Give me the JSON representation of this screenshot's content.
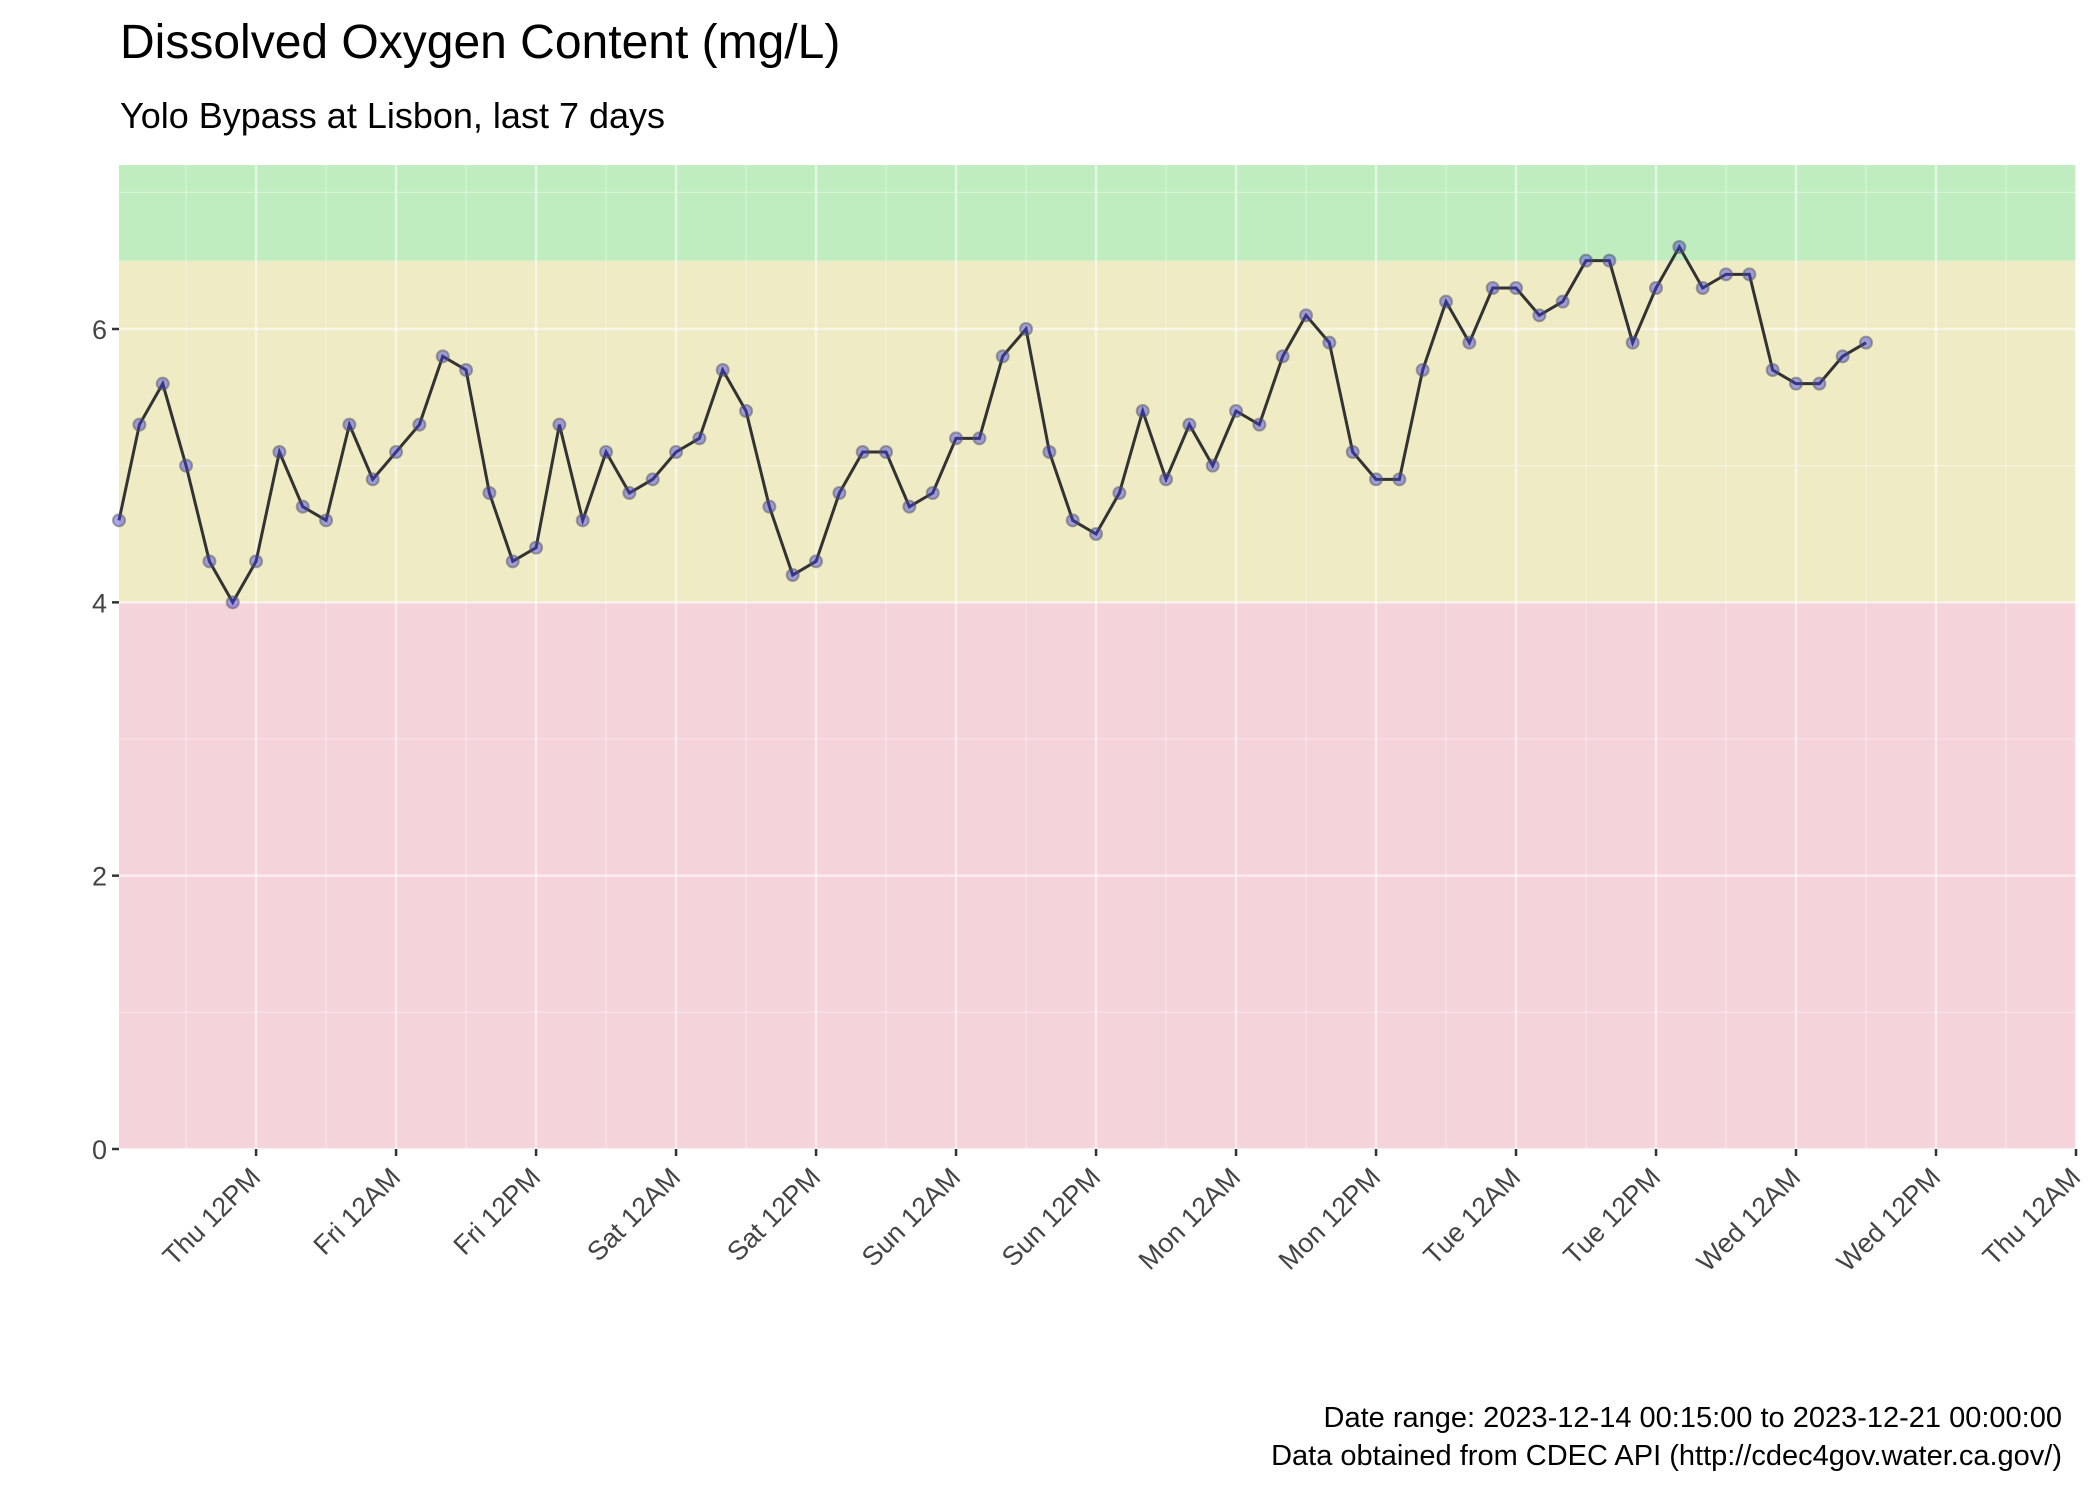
{
  "chart_data": {
    "type": "line",
    "title": "Dissolved Oxygen Content (mg/L)",
    "subtitle": "Yolo Bypass at Lisbon, last 7 days",
    "caption": [
      "Date range: 2023-12-14 00:15:00 to 2023-12-21 00:00:00",
      "Data obtained from CDEC API (http://cdec4gov.water.ca.gov/)"
    ],
    "x": [
      0.25,
      2,
      4,
      6,
      8,
      10,
      12,
      14,
      16,
      18,
      20,
      22,
      24,
      26,
      28,
      30,
      32,
      34,
      36,
      38,
      40,
      42,
      44,
      46,
      48,
      50,
      52,
      54,
      56,
      58,
      60,
      62,
      64,
      66,
      68,
      70,
      72,
      74,
      76,
      78,
      80,
      82,
      84,
      86,
      88,
      90,
      92,
      94,
      96,
      98,
      100,
      102,
      104,
      106,
      108,
      110,
      112,
      114,
      116,
      118,
      120,
      122,
      124,
      126,
      128,
      130,
      132,
      134,
      136,
      138,
      140,
      142,
      144,
      146,
      148,
      150
    ],
    "values": [
      4.6,
      5.3,
      5.6,
      5.0,
      4.3,
      4.0,
      4.3,
      5.1,
      4.7,
      4.6,
      5.3,
      4.9,
      5.1,
      5.3,
      5.8,
      5.7,
      4.8,
      4.3,
      4.4,
      5.3,
      4.6,
      5.1,
      4.8,
      4.9,
      5.1,
      5.2,
      5.7,
      5.4,
      4.7,
      4.2,
      4.3,
      4.8,
      5.1,
      5.1,
      4.7,
      4.8,
      5.2,
      5.2,
      5.8,
      6.0,
      5.1,
      4.6,
      4.5,
      4.8,
      5.4,
      4.9,
      5.3,
      5.0,
      5.4,
      5.3,
      5.8,
      6.1,
      5.9,
      5.1,
      4.9,
      4.9,
      5.7,
      6.2,
      5.9,
      6.3,
      6.3,
      6.1,
      6.2,
      6.5,
      6.5,
      5.9,
      6.3,
      6.6,
      6.3,
      6.4,
      6.4,
      5.7,
      5.6,
      5.6,
      5.8,
      5.9
    ],
    "color": "#333333",
    "point_color": "#3a3ae0",
    "bands": [
      {
        "from": 0,
        "to": 4,
        "color": "#f5d3db"
      },
      {
        "from": 4,
        "to": 6.5,
        "color": "#eeebc5"
      },
      {
        "from": 6.5,
        "to": 7.2,
        "color": "#bfedbf"
      }
    ],
    "xlim": [
      0.25,
      168
    ],
    "ylim": [
      0,
      7.2
    ],
    "yticks": [
      0,
      2,
      4,
      6
    ],
    "xticks": [
      {
        "value": 12,
        "label": "Thu 12PM"
      },
      {
        "value": 24,
        "label": "Fri 12AM"
      },
      {
        "value": 36,
        "label": "Fri 12PM"
      },
      {
        "value": 48,
        "label": "Sat 12AM"
      },
      {
        "value": 60,
        "label": "Sat 12PM"
      },
      {
        "value": 72,
        "label": "Sun 12AM"
      },
      {
        "value": 84,
        "label": "Sun 12PM"
      },
      {
        "value": 96,
        "label": "Mon 12AM"
      },
      {
        "value": 108,
        "label": "Mon 12PM"
      },
      {
        "value": 120,
        "label": "Tue 12AM"
      },
      {
        "value": 132,
        "label": "Tue 12PM"
      },
      {
        "value": 144,
        "label": "Wed 12AM"
      },
      {
        "value": 156,
        "label": "Wed 12PM"
      },
      {
        "value": 168,
        "label": "Thu 12AM"
      }
    ],
    "grid": true
  }
}
